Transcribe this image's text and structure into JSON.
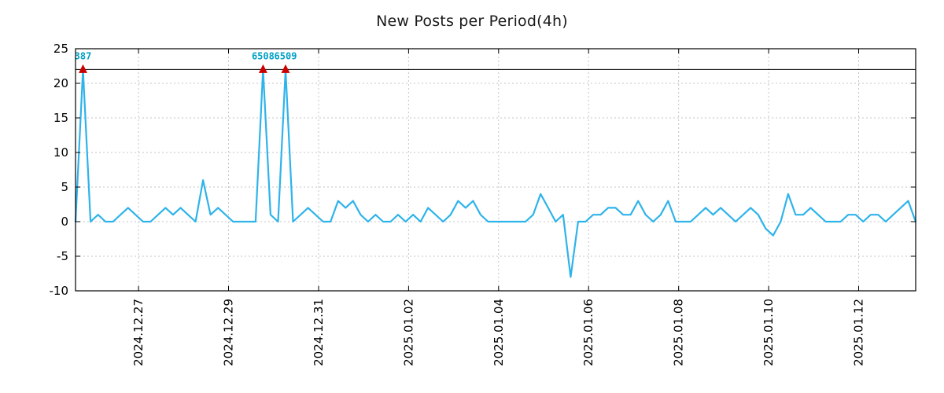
{
  "title": "New Posts per Period(4h)",
  "chart_data": {
    "type": "line",
    "title": "New Posts per Period(4h)",
    "xlabel": "",
    "ylabel": "",
    "period_hours": 4,
    "ylim": [
      -10,
      25
    ],
    "yticks": [
      -10,
      -5,
      0,
      5,
      10,
      15,
      20,
      25
    ],
    "threshold": 22,
    "grid": true,
    "legend": false,
    "x_ticks": [
      {
        "index": 8.4,
        "label": "2024.12.27"
      },
      {
        "index": 20.4,
        "label": "2024.12.29"
      },
      {
        "index": 32.4,
        "label": "2024.12.31"
      },
      {
        "index": 44.4,
        "label": "2025.01.02"
      },
      {
        "index": 56.4,
        "label": "2025.01.04"
      },
      {
        "index": 68.4,
        "label": "2025.01.06"
      },
      {
        "index": 80.4,
        "label": "2025.01.08"
      },
      {
        "index": 92.4,
        "label": "2025.01.10"
      },
      {
        "index": 104.4,
        "label": "2025.01.12"
      }
    ],
    "values": [
      0,
      22,
      0,
      1,
      0,
      0,
      1,
      2,
      1,
      0,
      0,
      1,
      2,
      1,
      2,
      1,
      0,
      6,
      1,
      2,
      1,
      0,
      0,
      0,
      0,
      22,
      1,
      0,
      22,
      0,
      1,
      2,
      1,
      0,
      0,
      3,
      2,
      3,
      1,
      0,
      1,
      0,
      0,
      1,
      0,
      1,
      0,
      2,
      1,
      0,
      1,
      3,
      2,
      3,
      1,
      0,
      0,
      0,
      0,
      0,
      0,
      1,
      4,
      2,
      0,
      1,
      -8,
      0,
      0,
      1,
      1,
      2,
      2,
      1,
      1,
      3,
      1,
      0,
      1,
      3,
      0,
      0,
      0,
      1,
      2,
      1,
      2,
      1,
      0,
      1,
      2,
      1,
      -1,
      -2,
      0,
      4,
      1,
      1,
      2,
      1,
      0,
      0,
      0,
      1,
      1,
      0,
      1,
      1,
      0,
      1,
      2,
      3,
      0
    ],
    "annotations": [
      {
        "index": 1,
        "value": 22,
        "label": "387"
      },
      {
        "index": 25,
        "value": 22,
        "label": "6508"
      },
      {
        "index": 28,
        "value": 22,
        "label": "6509"
      }
    ],
    "colors": {
      "line": "#2eb3ea",
      "marker": "#cc0000",
      "annotation": "#00a0c6",
      "grid": "#c4c4c4",
      "axis": "#000000",
      "title": "#1a1a1a"
    }
  }
}
